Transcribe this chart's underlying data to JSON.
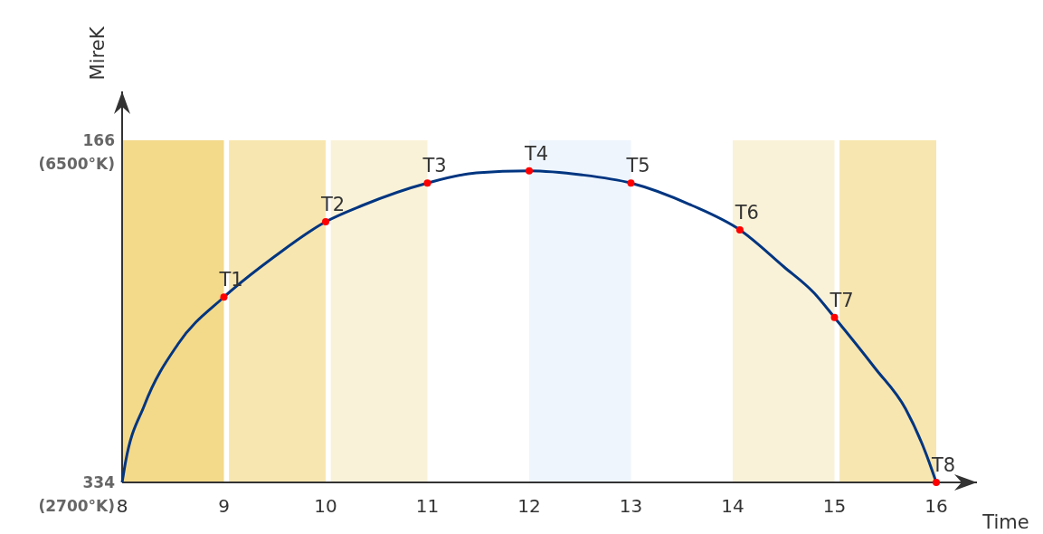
{
  "chart_data": {
    "type": "line",
    "xlabel": "Time",
    "ylabel": "MireK",
    "xlim": [
      8,
      16.4
    ],
    "xticks": [
      8,
      9,
      10,
      11,
      12,
      13,
      14,
      15,
      16
    ],
    "ylim": [
      334,
      142
    ],
    "yticks": [
      334,
      166
    ],
    "grid": false,
    "line_style": "solid",
    "series": [
      {
        "color": "#003580",
        "marker": "none",
        "x": [
          8,
          8.03,
          8.22,
          8.55,
          9,
          9.5,
          10,
          10.36,
          11,
          11.48,
          12,
          12.52,
          13,
          13.6,
          14.07,
          14.5,
          14.8,
          15,
          15.4,
          15.7,
          15.9,
          16
        ],
        "values": [
          334,
          325,
          296,
          266,
          243,
          223,
          206,
          198,
          187,
          182,
          181,
          183,
          187,
          198,
          210,
          228,
          241,
          253,
          278,
          298,
          320,
          334
        ]
      },
      {
        "type": "scatter",
        "color": "#ff0000",
        "marker": "circle",
        "x": [
          9,
          10,
          11,
          12,
          13,
          14.07,
          15,
          16
        ],
        "values": [
          243,
          206,
          187,
          181,
          187,
          210,
          253,
          334
        ]
      }
    ],
    "bands": [
      {
        "axis": "x",
        "from": 8,
        "to": 9,
        "color": "#f3d98a"
      },
      {
        "axis": "x",
        "from": 9.05,
        "to": 10,
        "color": "#f8e6b0"
      },
      {
        "axis": "x",
        "from": 10.05,
        "to": 11,
        "color": "#faf2d8"
      },
      {
        "axis": "x",
        "from": 12,
        "to": 13,
        "color": "#eef5fd"
      },
      {
        "axis": "x",
        "from": 14,
        "to": 15,
        "color": "#faf2d8"
      },
      {
        "axis": "x",
        "from": 15.05,
        "to": 16,
        "color": "#f8e6b0"
      }
    ],
    "annotations": [
      "(2700°K)",
      "(6500°K)",
      {
        "text": "T1",
        "x": 9,
        "y": 243
      },
      {
        "text": "T2",
        "x": 10,
        "y": 206
      },
      {
        "text": "T3",
        "x": 11,
        "y": 187
      },
      {
        "text": "T4",
        "x": 12,
        "y": 181
      },
      {
        "text": "T5",
        "x": 13,
        "y": 187
      },
      {
        "text": "T6",
        "x": 14.07,
        "y": 210
      },
      {
        "text": "T7",
        "x": 15,
        "y": 253
      },
      {
        "text": "T8",
        "x": 16,
        "y": 334
      }
    ]
  }
}
